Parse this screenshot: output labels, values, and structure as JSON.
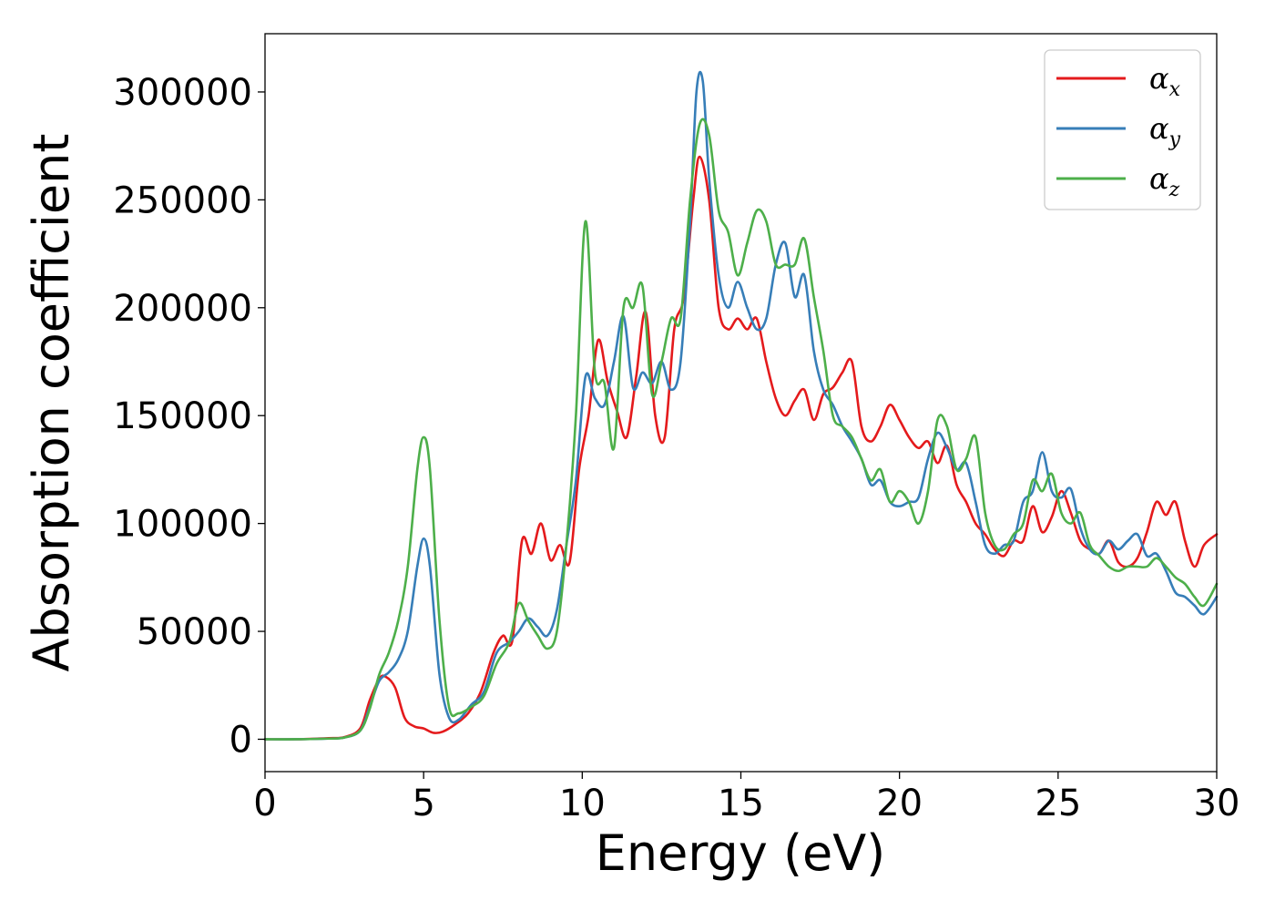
{
  "chart_data": {
    "type": "line",
    "title": "",
    "xlabel": "Energy (eV)",
    "ylabel": "Absorption coefficient",
    "xlim": [
      0,
      30
    ],
    "ylim": [
      -15000,
      327000
    ],
    "xticks": [
      0,
      5,
      10,
      15,
      20,
      25,
      30
    ],
    "xtick_labels": [
      "0",
      "5",
      "10",
      "15",
      "20",
      "25",
      "30"
    ],
    "yticks": [
      0,
      50000,
      100000,
      150000,
      200000,
      250000,
      300000
    ],
    "ytick_labels": [
      "0",
      "50000",
      "100000",
      "150000",
      "200000",
      "250000",
      "300000"
    ],
    "grid": false,
    "legend_position": "top-right",
    "series": [
      {
        "name": "α",
        "subscript": "x",
        "color": "#e41a1c",
        "x": [
          0,
          1,
          2,
          2.5,
          3,
          3.3,
          3.6,
          3.8,
          4.1,
          4.4,
          4.7,
          5.0,
          5.3,
          5.6,
          6.0,
          6.4,
          6.8,
          7.2,
          7.5,
          7.8,
          8.1,
          8.4,
          8.7,
          9.0,
          9.3,
          9.6,
          9.9,
          10.2,
          10.5,
          10.8,
          11.1,
          11.4,
          11.7,
          12.0,
          12.3,
          12.6,
          12.9,
          13.2,
          13.5,
          13.7,
          14.0,
          14.3,
          14.6,
          14.9,
          15.2,
          15.5,
          15.8,
          16.1,
          16.4,
          16.7,
          17.0,
          17.3,
          17.6,
          17.9,
          18.2,
          18.5,
          18.8,
          19.1,
          19.4,
          19.7,
          20.0,
          20.3,
          20.6,
          20.9,
          21.2,
          21.5,
          21.8,
          22.1,
          22.4,
          22.7,
          23.0,
          23.3,
          23.6,
          23.9,
          24.2,
          24.5,
          24.8,
          25.1,
          25.4,
          25.7,
          26.0,
          26.3,
          26.6,
          26.9,
          27.2,
          27.5,
          27.8,
          28.1,
          28.4,
          28.7,
          29.0,
          29.3,
          29.6,
          30.0
        ],
        "y": [
          0,
          0,
          500,
          1000,
          5000,
          18000,
          28000,
          29000,
          24000,
          10000,
          6000,
          5000,
          3000,
          3500,
          7000,
          12000,
          22000,
          40000,
          48000,
          46000,
          92000,
          86000,
          100000,
          83000,
          90000,
          82000,
          125000,
          150000,
          185000,
          166000,
          152000,
          140000,
          168000,
          198000,
          150000,
          140000,
          190000,
          205000,
          250000,
          270000,
          250000,
          200000,
          190000,
          195000,
          190000,
          195000,
          175000,
          158000,
          150000,
          157000,
          162000,
          148000,
          160000,
          163000,
          170000,
          175000,
          145000,
          138000,
          145000,
          155000,
          148000,
          140000,
          135000,
          138000,
          128000,
          136000,
          118000,
          110000,
          100000,
          95000,
          88000,
          85000,
          92000,
          92000,
          108000,
          96000,
          103000,
          115000,
          105000,
          92000,
          88000,
          86000,
          92000,
          82000,
          80000,
          84000,
          96000,
          110000,
          104000,
          110000,
          92000,
          80000,
          90000,
          95000
        ]
      },
      {
        "name": "α",
        "subscript": "y",
        "color": "#377eb8",
        "x": [
          0,
          1,
          2,
          2.5,
          3,
          3.3,
          3.6,
          3.9,
          4.2,
          4.5,
          4.8,
          5.0,
          5.2,
          5.5,
          5.8,
          6.1,
          6.5,
          6.9,
          7.3,
          7.7,
          8.0,
          8.3,
          8.6,
          8.9,
          9.2,
          9.5,
          9.8,
          10.1,
          10.4,
          10.7,
          11.0,
          11.3,
          11.6,
          11.9,
          12.2,
          12.5,
          12.8,
          13.1,
          13.4,
          13.6,
          13.8,
          14.0,
          14.3,
          14.6,
          14.9,
          15.2,
          15.5,
          15.8,
          16.1,
          16.4,
          16.7,
          17.0,
          17.3,
          17.6,
          17.9,
          18.2,
          18.5,
          18.8,
          19.1,
          19.4,
          19.7,
          20.0,
          20.3,
          20.6,
          20.9,
          21.2,
          21.5,
          21.8,
          22.1,
          22.4,
          22.7,
          23.0,
          23.3,
          23.6,
          23.9,
          24.2,
          24.5,
          24.8,
          25.1,
          25.4,
          25.7,
          26.0,
          26.3,
          26.6,
          26.9,
          27.2,
          27.5,
          27.8,
          28.1,
          28.4,
          28.7,
          29.0,
          29.3,
          29.6,
          30.0
        ],
        "y": [
          0,
          0,
          300,
          800,
          4000,
          15000,
          27000,
          31000,
          37000,
          50000,
          80000,
          93000,
          80000,
          30000,
          10000,
          9000,
          16000,
          22000,
          40000,
          45000,
          50000,
          56000,
          52000,
          48000,
          60000,
          90000,
          120000,
          168000,
          158000,
          155000,
          175000,
          196000,
          163000,
          170000,
          165000,
          175000,
          162000,
          175000,
          240000,
          300000,
          305000,
          260000,
          215000,
          200000,
          212000,
          200000,
          190000,
          195000,
          220000,
          230000,
          205000,
          215000,
          180000,
          162000,
          155000,
          145000,
          138000,
          130000,
          118000,
          120000,
          110000,
          108000,
          110000,
          112000,
          130000,
          142000,
          135000,
          125000,
          128000,
          110000,
          90000,
          86000,
          90000,
          92000,
          110000,
          115000,
          133000,
          115000,
          112000,
          116000,
          98000,
          88000,
          86000,
          92000,
          88000,
          92000,
          95000,
          85000,
          86000,
          78000,
          68000,
          66000,
          62000,
          58000,
          66000
        ]
      },
      {
        "name": "α",
        "subscript": "z",
        "color": "#4daf4a",
        "x": [
          0,
          1,
          2,
          2.5,
          3,
          3.3,
          3.6,
          3.9,
          4.2,
          4.5,
          4.8,
          5.0,
          5.2,
          5.5,
          5.8,
          6.1,
          6.5,
          6.9,
          7.3,
          7.7,
          8.0,
          8.3,
          8.6,
          8.9,
          9.2,
          9.5,
          9.8,
          10.1,
          10.4,
          10.7,
          11.0,
          11.3,
          11.6,
          11.9,
          12.2,
          12.5,
          12.8,
          13.1,
          13.4,
          13.7,
          14.0,
          14.3,
          14.6,
          14.9,
          15.2,
          15.5,
          15.8,
          16.1,
          16.4,
          16.7,
          17.0,
          17.3,
          17.6,
          17.9,
          18.2,
          18.5,
          18.8,
          19.1,
          19.4,
          19.7,
          20.0,
          20.3,
          20.6,
          20.9,
          21.2,
          21.5,
          21.8,
          22.1,
          22.4,
          22.7,
          23.0,
          23.3,
          23.6,
          23.9,
          24.2,
          24.5,
          24.8,
          25.1,
          25.4,
          25.7,
          26.0,
          26.3,
          26.6,
          26.9,
          27.2,
          27.5,
          27.8,
          28.1,
          28.4,
          28.7,
          29.0,
          29.3,
          29.6,
          30.0
        ],
        "y": [
          0,
          0,
          300,
          800,
          4000,
          14000,
          30000,
          40000,
          55000,
          80000,
          125000,
          140000,
          125000,
          55000,
          15000,
          12000,
          15000,
          20000,
          35000,
          45000,
          63000,
          55000,
          48000,
          42000,
          50000,
          90000,
          150000,
          240000,
          170000,
          165000,
          135000,
          200000,
          200000,
          210000,
          160000,
          175000,
          195000,
          195000,
          250000,
          285000,
          280000,
          245000,
          235000,
          215000,
          230000,
          245000,
          240000,
          220000,
          220000,
          220000,
          232000,
          205000,
          180000,
          150000,
          145000,
          140000,
          130000,
          120000,
          125000,
          110000,
          115000,
          110000,
          100000,
          115000,
          148000,
          145000,
          125000,
          130000,
          140000,
          105000,
          90000,
          88000,
          95000,
          100000,
          120000,
          115000,
          123000,
          105000,
          100000,
          105000,
          90000,
          85000,
          80000,
          78000,
          80000,
          80000,
          80000,
          84000,
          80000,
          75000,
          72000,
          66000,
          62000,
          72000
        ]
      }
    ]
  }
}
